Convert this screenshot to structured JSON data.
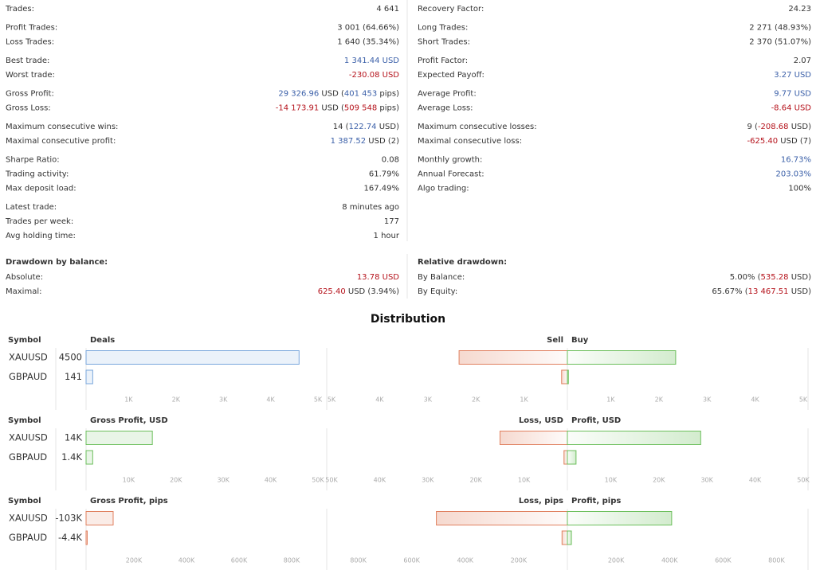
{
  "stats": {
    "left": [
      [
        {
          "label": "Trades:",
          "value": [
            {
              "text": "4 641"
            }
          ]
        }
      ],
      [
        {
          "label": "Profit Trades:",
          "value": [
            {
              "text": "3 001 (64.66%)"
            }
          ]
        },
        {
          "label": "Loss Trades:",
          "value": [
            {
              "text": "1 640 (35.34%)"
            }
          ]
        }
      ],
      [
        {
          "label": "Best trade:",
          "value": [
            {
              "text": "1 341.44 USD",
              "tone": "pos"
            }
          ]
        },
        {
          "label": "Worst trade:",
          "value": [
            {
              "text": "-230.08 USD",
              "tone": "neg"
            }
          ]
        }
      ],
      [
        {
          "label": "Gross Profit:",
          "value": [
            {
              "text": "29 326.96",
              "tone": "pos"
            },
            {
              "text": " USD ("
            },
            {
              "text": "401 453",
              "tone": "pos"
            },
            {
              "text": " pips)"
            }
          ]
        },
        {
          "label": "Gross Loss:",
          "value": [
            {
              "text": "-14 173.91",
              "tone": "neg"
            },
            {
              "text": " USD ("
            },
            {
              "text": "509 548",
              "tone": "neg"
            },
            {
              "text": " pips)"
            }
          ]
        }
      ],
      [
        {
          "label": "Maximum consecutive wins:",
          "value": [
            {
              "text": "14 ("
            },
            {
              "text": "122.74",
              "tone": "pos"
            },
            {
              "text": " USD)"
            }
          ]
        },
        {
          "label": "Maximal consecutive profit:",
          "value": [
            {
              "text": "1 387.52",
              "tone": "pos"
            },
            {
              "text": " USD (2)"
            }
          ]
        }
      ],
      [
        {
          "label": "Sharpe Ratio:",
          "value": [
            {
              "text": "0.08"
            }
          ]
        },
        {
          "label": "Trading activity:",
          "value": [
            {
              "text": "61.79%"
            }
          ]
        },
        {
          "label": "Max deposit load:",
          "value": [
            {
              "text": "167.49%"
            }
          ]
        }
      ],
      [
        {
          "label": "Latest trade:",
          "value": [
            {
              "text": "8 minutes ago"
            }
          ]
        },
        {
          "label": "Trades per week:",
          "value": [
            {
              "text": "177"
            }
          ]
        },
        {
          "label": "Avg holding time:",
          "value": [
            {
              "text": "1 hour"
            }
          ]
        }
      ]
    ],
    "right": [
      [
        {
          "label": "Recovery Factor:",
          "value": [
            {
              "text": "24.23"
            }
          ]
        }
      ],
      [
        {
          "label": "Long Trades:",
          "value": [
            {
              "text": "2 271 (48.93%)"
            }
          ]
        },
        {
          "label": "Short Trades:",
          "value": [
            {
              "text": "2 370 (51.07%)"
            }
          ]
        }
      ],
      [
        {
          "label": "Profit Factor:",
          "value": [
            {
              "text": "2.07"
            }
          ]
        },
        {
          "label": "Expected Payoff:",
          "value": [
            {
              "text": "3.27 USD",
              "tone": "pos"
            }
          ]
        }
      ],
      [
        {
          "label": "Average Profit:",
          "value": [
            {
              "text": "9.77 USD",
              "tone": "pos"
            }
          ]
        },
        {
          "label": "Average Loss:",
          "value": [
            {
              "text": "-8.64 USD",
              "tone": "neg"
            }
          ]
        }
      ],
      [
        {
          "label": "Maximum consecutive losses:",
          "value": [
            {
              "text": "9 ("
            },
            {
              "text": "-208.68",
              "tone": "neg"
            },
            {
              "text": " USD)"
            }
          ]
        },
        {
          "label": "Maximal consecutive loss:",
          "value": [
            {
              "text": "-625.40",
              "tone": "neg"
            },
            {
              "text": " USD (7)"
            }
          ]
        }
      ],
      [
        {
          "label": "Monthly growth:",
          "value": [
            {
              "text": "16.73%",
              "tone": "pos"
            }
          ]
        },
        {
          "label": "Annual Forecast:",
          "value": [
            {
              "text": "203.03%",
              "tone": "pos"
            }
          ]
        },
        {
          "label": "Algo trading:",
          "value": [
            {
              "text": "100%"
            }
          ]
        }
      ]
    ]
  },
  "drawdown": {
    "left": {
      "title": "Drawdown by balance:",
      "rows": [
        {
          "label": "Absolute:",
          "value": [
            {
              "text": "13.78 USD",
              "tone": "neg"
            }
          ]
        },
        {
          "label": "Maximal:",
          "value": [
            {
              "text": "625.40",
              "tone": "neg"
            },
            {
              "text": " USD (3.94%)"
            }
          ]
        }
      ]
    },
    "right": {
      "title": "Relative drawdown:",
      "rows": [
        {
          "label": "By Balance:",
          "value": [
            {
              "text": "5.00% ("
            },
            {
              "text": "535.28",
              "tone": "neg"
            },
            {
              "text": " USD)"
            }
          ]
        },
        {
          "label": "By Equity:",
          "value": [
            {
              "text": "65.67% ("
            },
            {
              "text": "13 467.51",
              "tone": "neg"
            },
            {
              "text": " USD)"
            }
          ]
        }
      ]
    }
  },
  "distribution_title": "Distribution",
  "chart_data": [
    {
      "type": "bar",
      "category_header": "Symbol",
      "categories": [
        "XAUUSD",
        "GBPAUD"
      ],
      "totals": {
        "title": "Deals",
        "values": [
          4500,
          141
        ],
        "color": "#7aa7dc",
        "xlim": [
          0,
          5000
        ],
        "xticks": [
          {
            "value": 1000,
            "label": "1K"
          },
          {
            "value": 2000,
            "label": "2K"
          },
          {
            "value": 3000,
            "label": "3K"
          },
          {
            "value": 4000,
            "label": "4K"
          },
          {
            "value": 5000,
            "label": "5K"
          }
        ]
      },
      "split": {
        "series": [
          {
            "name": "Sell",
            "side": "left",
            "color": "#e0805f",
            "values": [
              2250,
              120
            ]
          },
          {
            "name": "Buy",
            "side": "right",
            "color": "#6cbf5c",
            "values": [
              2250,
              21
            ]
          }
        ],
        "xlim": [
          0,
          5000
        ],
        "xticks": [
          {
            "value": 1000,
            "label": "1K"
          },
          {
            "value": 2000,
            "label": "2K"
          },
          {
            "value": 3000,
            "label": "3K"
          },
          {
            "value": 4000,
            "label": "4K"
          },
          {
            "value": 5000,
            "label": "5K"
          }
        ]
      }
    },
    {
      "type": "bar",
      "category_header": "Symbol",
      "categories": [
        "XAUUSD",
        "GBPAUD"
      ],
      "totals": {
        "title": "Gross Profit, USD",
        "values": [
          14000,
          1400
        ],
        "value_labels": [
          "14K",
          "1.4K"
        ],
        "color": "#6cbf5c",
        "xlim": [
          0,
          50000
        ],
        "xticks": [
          {
            "value": 10000,
            "label": "10K"
          },
          {
            "value": 20000,
            "label": "20K"
          },
          {
            "value": 30000,
            "label": "30K"
          },
          {
            "value": 40000,
            "label": "40K"
          },
          {
            "value": 50000,
            "label": "50K"
          }
        ]
      },
      "split": {
        "series": [
          {
            "name": "Loss, USD",
            "side": "left",
            "color": "#e0805f",
            "values": [
              14000,
              700
            ]
          },
          {
            "name": "Profit, USD",
            "side": "right",
            "color": "#6cbf5c",
            "values": [
              27700,
              1800
            ]
          }
        ],
        "xlim": [
          0,
          50000
        ],
        "xticks": [
          {
            "value": 10000,
            "label": "10K"
          },
          {
            "value": 20000,
            "label": "20K"
          },
          {
            "value": 30000,
            "label": "30K"
          },
          {
            "value": 40000,
            "label": "40K"
          },
          {
            "value": 50000,
            "label": "50K"
          }
        ]
      }
    },
    {
      "type": "bar",
      "category_header": "Symbol",
      "categories": [
        "XAUUSD",
        "GBPAUD"
      ],
      "totals": {
        "title": "Gross Profit, pips",
        "values": [
          -103000,
          -4400
        ],
        "value_labels": [
          "-103K",
          "-4.4K"
        ],
        "color": "#e0805f",
        "xlim": [
          0,
          900000
        ],
        "xticks": [
          {
            "value": 200000,
            "label": "200K"
          },
          {
            "value": 400000,
            "label": "400K"
          },
          {
            "value": 600000,
            "label": "600K"
          },
          {
            "value": 800000,
            "label": "800K"
          }
        ]
      },
      "split": {
        "series": [
          {
            "name": "Loss, pips",
            "side": "left",
            "color": "#e0805f",
            "values": [
              490000,
              20000
            ]
          },
          {
            "name": "Profit, pips",
            "side": "right",
            "color": "#6cbf5c",
            "values": [
              390000,
              15000
            ]
          }
        ],
        "xlim": [
          0,
          900000
        ],
        "xticks": [
          {
            "value": 200000,
            "label": "200K"
          },
          {
            "value": 400000,
            "label": "400K"
          },
          {
            "value": 600000,
            "label": "600K"
          },
          {
            "value": 800000,
            "label": "800K"
          }
        ]
      }
    }
  ]
}
